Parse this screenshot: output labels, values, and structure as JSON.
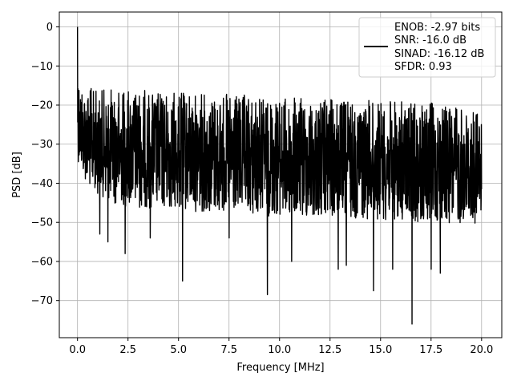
{
  "chart_data": {
    "type": "line",
    "xlabel": "Frequency [MHz]",
    "ylabel": "PSD [dB]",
    "xlim": [
      -0.9,
      21.0
    ],
    "ylim": [
      -79.5,
      3.8
    ],
    "x_ticks": [
      0.0,
      2.5,
      5.0,
      7.5,
      10.0,
      12.5,
      15.0,
      17.5,
      20.0
    ],
    "x_tick_labels": [
      "0.0",
      "2.5",
      "5.0",
      "7.5",
      "10.0",
      "12.5",
      "15.0",
      "17.5",
      "20.0"
    ],
    "y_ticks": [
      0,
      -10,
      -20,
      -30,
      -40,
      -50,
      -60,
      -70
    ],
    "y_tick_labels": [
      "0",
      "−10",
      "−20",
      "−30",
      "−40",
      "−50",
      "−60",
      "−70"
    ],
    "grid": true,
    "legend_position": "top-right",
    "legend_entries": [
      "ENOB: -2.97 bits",
      "SNR: -16.0 dB",
      "SINAD: -16.12 dB",
      "SFDR: 0.93"
    ],
    "series_color": "#000000",
    "x_range": [
      0.0,
      20.0
    ],
    "peak": {
      "x": 0.0,
      "y": 0.0
    },
    "upper_envelope_db": [
      [
        0.0,
        0.0
      ],
      [
        0.02,
        -6
      ],
      [
        0.05,
        -10
      ],
      [
        0.1,
        -13
      ],
      [
        0.3,
        -15
      ],
      [
        1.0,
        -16
      ],
      [
        2.5,
        -15.5
      ],
      [
        4.0,
        -16.5
      ],
      [
        7.0,
        -17
      ],
      [
        10.0,
        -18
      ],
      [
        13.0,
        -18.5
      ],
      [
        16.0,
        -19
      ],
      [
        18.0,
        -19.5
      ],
      [
        19.5,
        -21
      ],
      [
        20.0,
        -22
      ]
    ],
    "lower_envelope_db": [
      [
        0.0,
        -34
      ],
      [
        0.5,
        -41
      ],
      [
        2.0,
        -46
      ],
      [
        5.0,
        -47
      ],
      [
        8.0,
        -48
      ],
      [
        11.0,
        -49
      ],
      [
        14.0,
        -49
      ],
      [
        17.0,
        -50
      ],
      [
        20.0,
        -51
      ]
    ],
    "notable_dips": [
      {
        "x": 1.1,
        "y": -53
      },
      {
        "x": 1.5,
        "y": -55
      },
      {
        "x": 2.35,
        "y": -58
      },
      {
        "x": 3.6,
        "y": -54
      },
      {
        "x": 5.2,
        "y": -65
      },
      {
        "x": 7.5,
        "y": -54
      },
      {
        "x": 9.4,
        "y": -68.5
      },
      {
        "x": 10.6,
        "y": -60
      },
      {
        "x": 12.9,
        "y": -62
      },
      {
        "x": 13.3,
        "y": -61
      },
      {
        "x": 14.65,
        "y": -67.5
      },
      {
        "x": 15.6,
        "y": -62
      },
      {
        "x": 16.55,
        "y": -76
      },
      {
        "x": 17.5,
        "y": -62
      },
      {
        "x": 17.95,
        "y": -63
      }
    ]
  }
}
